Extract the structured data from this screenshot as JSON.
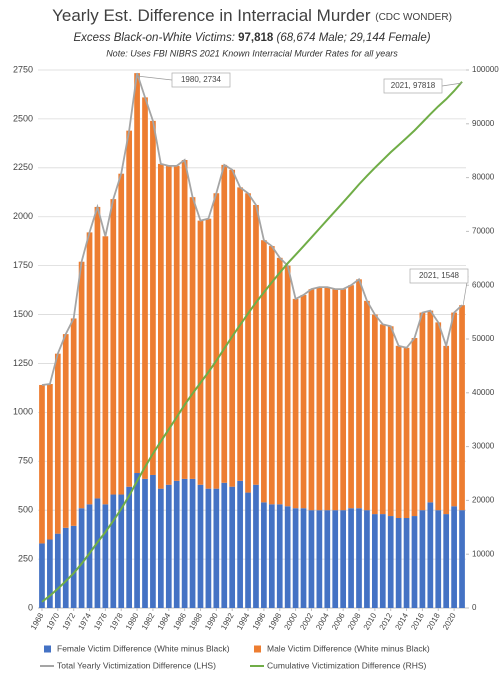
{
  "chart_data": {
    "type": "bar",
    "title": "Yearly Est. Difference in Interracial Murder",
    "title_source": "(CDC WONDER)",
    "subtitle_prefix": "Excess Black-on-White Victims:",
    "subtitle_bold": "97,818",
    "subtitle_rest": "(68,674 Male; 29,144 Female)",
    "note": "Note: Uses FBI NIBRS 2021 Known Interracial Murder Rates for all years",
    "x": [
      1968,
      1969,
      1970,
      1971,
      1972,
      1973,
      1974,
      1975,
      1976,
      1977,
      1978,
      1979,
      1980,
      1981,
      1982,
      1983,
      1984,
      1985,
      1986,
      1987,
      1988,
      1989,
      1990,
      1991,
      1992,
      1993,
      1994,
      1995,
      1996,
      1997,
      1998,
      1999,
      2000,
      2001,
      2002,
      2003,
      2004,
      2005,
      2006,
      2007,
      2008,
      2009,
      2010,
      2011,
      2012,
      2013,
      2014,
      2015,
      2016,
      2017,
      2018,
      2019,
      2020,
      2021
    ],
    "xlim": [
      1967.5,
      2021.5
    ],
    "xticks": [
      1968,
      1970,
      1972,
      1974,
      1976,
      1978,
      1980,
      1982,
      1984,
      1986,
      1988,
      1990,
      1992,
      1994,
      1996,
      1998,
      2000,
      2002,
      2004,
      2006,
      2008,
      2010,
      2012,
      2014,
      2016,
      2018,
      2020
    ],
    "ylim": [
      0,
      2750
    ],
    "yticks": [
      0,
      250,
      500,
      750,
      1000,
      1250,
      1500,
      1750,
      2000,
      2250,
      2500,
      2750
    ],
    "y2lim": [
      0,
      100000
    ],
    "y2ticks": [
      0,
      10000,
      20000,
      30000,
      40000,
      50000,
      60000,
      70000,
      80000,
      90000,
      100000
    ],
    "grid": true,
    "series": [
      {
        "name": "Female Victim Difference (White minus Black)",
        "type": "bar",
        "color": "#4472c4",
        "values": [
          330,
          350,
          380,
          410,
          420,
          510,
          530,
          560,
          530,
          580,
          580,
          620,
          690,
          660,
          680,
          610,
          630,
          650,
          660,
          660,
          630,
          610,
          610,
          640,
          620,
          650,
          590,
          630,
          540,
          530,
          530,
          520,
          510,
          510,
          500,
          500,
          500,
          500,
          500,
          510,
          510,
          500,
          480,
          480,
          470,
          460,
          460,
          470,
          500,
          540,
          500,
          480,
          520,
          500
        ]
      },
      {
        "name": "Male Victim Difference (White minus Black)",
        "type": "bar",
        "color": "#ed7d31",
        "values": [
          810,
          795,
          920,
          990,
          1060,
          1260,
          1390,
          1490,
          1370,
          1510,
          1640,
          1820,
          2044,
          1950,
          1810,
          1660,
          1630,
          1610,
          1630,
          1440,
          1350,
          1380,
          1510,
          1625,
          1620,
          1500,
          1530,
          1430,
          1340,
          1320,
          1260,
          1230,
          1070,
          1090,
          1130,
          1140,
          1140,
          1130,
          1130,
          1140,
          1170,
          1070,
          1020,
          970,
          970,
          880,
          870,
          910,
          1010,
          980,
          960,
          860,
          990,
          1048
        ]
      },
      {
        "name": "Total Yearly Victimization Difference (LHS)",
        "type": "line",
        "color": "#a5a5a5",
        "values": [
          1140,
          1145,
          1300,
          1400,
          1480,
          1770,
          1920,
          2050,
          1900,
          2090,
          2220,
          2440,
          2734,
          2610,
          2490,
          2270,
          2260,
          2260,
          2290,
          2100,
          1980,
          1990,
          2120,
          2265,
          2240,
          2150,
          2120,
          2060,
          1880,
          1850,
          1790,
          1750,
          1580,
          1600,
          1630,
          1640,
          1640,
          1630,
          1630,
          1650,
          1680,
          1570,
          1500,
          1450,
          1440,
          1340,
          1330,
          1380,
          1510,
          1520,
          1460,
          1340,
          1510,
          1548
        ]
      },
      {
        "name": "Cumulative Victimization Difference (RHS)",
        "type": "line",
        "axis": "y2",
        "color": "#70ad47",
        "values": [
          1140,
          2285,
          3585,
          4985,
          6465,
          8235,
          10155,
          12205,
          14105,
          16195,
          18415,
          20855,
          23589,
          26199,
          28689,
          30959,
          33219,
          35479,
          37769,
          39869,
          41849,
          43839,
          45959,
          48224,
          50464,
          52614,
          54734,
          56794,
          58674,
          60524,
          62314,
          64064,
          65644,
          67244,
          68874,
          70514,
          72154,
          73784,
          75414,
          77064,
          78744,
          80314,
          81814,
          83264,
          84704,
          86044,
          87374,
          88754,
          90264,
          91784,
          93244,
          94584,
          96094,
          97818
        ]
      }
    ],
    "annotations": [
      "1980, 2734",
      "2021, 97818",
      "2021, 1548"
    ]
  }
}
